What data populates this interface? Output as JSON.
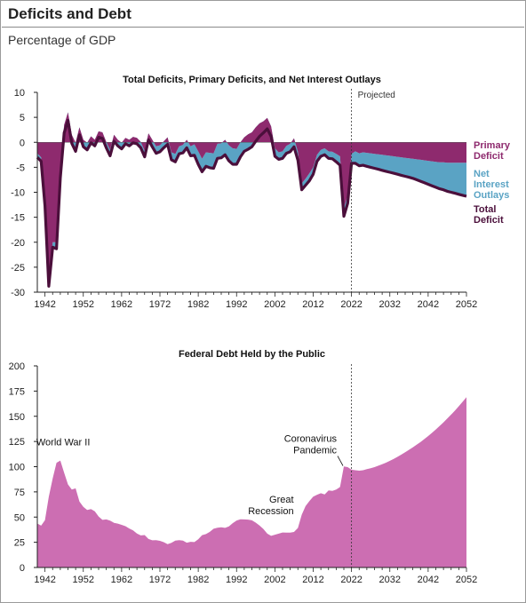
{
  "header": {
    "title": "Deficits and Debt",
    "subtitle": "Percentage of GDP"
  },
  "colors": {
    "primary_deficit": "#8e2a6e",
    "net_interest": "#5aa3c4",
    "total_deficit": "#4b0f3b",
    "debt_fill": "#cc6eb2",
    "axis": "#222222"
  },
  "chart_data": [
    {
      "type": "area",
      "title": "Total Deficits, Primary Deficits, and Net Interest Outlays",
      "annotation": "Projected",
      "projection_start": 2022,
      "xlim": [
        1940,
        2052
      ],
      "ylim": [
        -30,
        10
      ],
      "x_ticks": [
        1942,
        1952,
        1962,
        1972,
        1982,
        1992,
        2002,
        2012,
        2022,
        2032,
        2042,
        2052
      ],
      "y_ticks": [
        10,
        5,
        0,
        -5,
        -10,
        -15,
        -20,
        -25,
        -30
      ],
      "series": [
        {
          "name": "Primary Deficit",
          "x": [
            1940,
            1941,
            1942,
            1943,
            1944,
            1945,
            1946,
            1947,
            1948,
            1949,
            1950,
            1951,
            1952,
            1953,
            1954,
            1955,
            1956,
            1957,
            1958,
            1959,
            1960,
            1961,
            1962,
            1963,
            1964,
            1965,
            1966,
            1967,
            1968,
            1969,
            1970,
            1971,
            1972,
            1973,
            1974,
            1975,
            1976,
            1977,
            1978,
            1979,
            1980,
            1981,
            1982,
            1983,
            1984,
            1985,
            1986,
            1987,
            1988,
            1989,
            1990,
            1991,
            1992,
            1993,
            1994,
            1995,
            1996,
            1997,
            1998,
            1999,
            2000,
            2001,
            2002,
            2003,
            2004,
            2005,
            2006,
            2007,
            2008,
            2009,
            2010,
            2011,
            2012,
            2013,
            2014,
            2015,
            2016,
            2017,
            2018,
            2019,
            2020,
            2021,
            2022,
            2023,
            2024,
            2025,
            2026,
            2027,
            2028,
            2029,
            2030,
            2031,
            2032,
            2033,
            2034,
            2035,
            2036,
            2037,
            2038,
            2039,
            2040,
            2041,
            2042,
            2043,
            2044,
            2045,
            2046,
            2047,
            2048,
            2049,
            2050,
            2051,
            2052
          ],
          "values": [
            -2.2,
            -3.0,
            -12.0,
            -28.0,
            -20.0,
            -20.0,
            -5.5,
            3.5,
            6.0,
            1.5,
            -0.1,
            3.0,
            0.5,
            -0.1,
            1.2,
            0.5,
            2.2,
            2.0,
            0.1,
            -1.5,
            1.5,
            0.5,
            -0.1,
            0.9,
            0.5,
            1.1,
            0.9,
            0.1,
            -1.7,
            1.8,
            0.5,
            -0.8,
            -0.6,
            0.2,
            1.0,
            -2.0,
            -2.3,
            -0.8,
            -0.5,
            0.5,
            -0.8,
            -0.4,
            -1.8,
            -3.3,
            -2.0,
            -2.1,
            -2.2,
            -0.3,
            -0.2,
            0.5,
            -0.6,
            -1.2,
            -1.3,
            0.0,
            1.0,
            1.6,
            2.0,
            3.0,
            3.8,
            4.2,
            4.9,
            3.2,
            -1.2,
            -2.0,
            -1.8,
            -0.7,
            -0.3,
            0.8,
            -1.9,
            -8.2,
            -7.3,
            -6.2,
            -5.0,
            -2.5,
            -1.5,
            -1.2,
            -1.8,
            -1.9,
            -2.3,
            -2.8,
            -13.2,
            -10.6,
            -2.3,
            -1.8,
            -2.2,
            -2.0,
            -2.1,
            -2.2,
            -2.3,
            -2.4,
            -2.5,
            -2.6,
            -2.7,
            -2.8,
            -2.9,
            -3.0,
            -3.1,
            -3.2,
            -3.3,
            -3.4,
            -3.5,
            -3.6,
            -3.7,
            -3.8,
            -3.9,
            -4.0,
            -4.0,
            -4.1,
            -4.1,
            -4.1,
            -4.1,
            -4.1,
            -4.1
          ]
        },
        {
          "name": "Net Interest Outlays",
          "x": [
            1940,
            1941,
            1942,
            1943,
            1944,
            1945,
            1946,
            1947,
            1948,
            1949,
            1950,
            1951,
            1952,
            1953,
            1954,
            1955,
            1956,
            1957,
            1958,
            1959,
            1960,
            1961,
            1962,
            1963,
            1964,
            1965,
            1966,
            1967,
            1968,
            1969,
            1970,
            1971,
            1972,
            1973,
            1974,
            1975,
            1976,
            1977,
            1978,
            1979,
            1980,
            1981,
            1982,
            1983,
            1984,
            1985,
            1986,
            1987,
            1988,
            1989,
            1990,
            1991,
            1992,
            1993,
            1994,
            1995,
            1996,
            1997,
            1998,
            1999,
            2000,
            2001,
            2002,
            2003,
            2004,
            2005,
            2006,
            2007,
            2008,
            2009,
            2010,
            2011,
            2012,
            2013,
            2014,
            2015,
            2016,
            2017,
            2018,
            2019,
            2020,
            2021,
            2022,
            2023,
            2024,
            2025,
            2026,
            2027,
            2028,
            2029,
            2030,
            2031,
            2032,
            2033,
            2034,
            2035,
            2036,
            2037,
            2038,
            2039,
            2040,
            2041,
            2042,
            2043,
            2044,
            2045,
            2046,
            2047,
            2048,
            2049,
            2050,
            2051,
            2052
          ],
          "values": [
            0.8,
            0.8,
            0.7,
            0.8,
            1.0,
            1.3,
            1.6,
            1.6,
            1.6,
            1.7,
            1.7,
            1.5,
            1.4,
            1.4,
            1.3,
            1.2,
            1.2,
            1.2,
            1.2,
            1.2,
            1.3,
            1.2,
            1.2,
            1.2,
            1.2,
            1.2,
            1.2,
            1.2,
            1.2,
            1.3,
            1.4,
            1.4,
            1.3,
            1.3,
            1.4,
            1.5,
            1.6,
            1.5,
            1.6,
            1.6,
            1.9,
            2.2,
            2.6,
            2.6,
            2.8,
            3.0,
            3.0,
            2.9,
            2.9,
            3.0,
            3.1,
            3.2,
            3.1,
            2.9,
            2.8,
            3.0,
            2.9,
            2.8,
            2.6,
            2.3,
            2.2,
            2.0,
            1.6,
            1.4,
            1.4,
            1.5,
            1.6,
            1.7,
            1.7,
            1.3,
            1.3,
            1.5,
            1.4,
            1.3,
            1.3,
            1.3,
            1.4,
            1.4,
            1.6,
            1.8,
            1.6,
            1.6,
            1.9,
            2.4,
            2.5,
            2.6,
            2.7,
            2.8,
            2.9,
            3.0,
            3.1,
            3.2,
            3.3,
            3.4,
            3.5,
            3.6,
            3.7,
            3.8,
            3.9,
            4.1,
            4.3,
            4.5,
            4.7,
            4.9,
            5.1,
            5.3,
            5.5,
            5.7,
            5.9,
            6.1,
            6.3,
            6.5,
            6.7
          ]
        },
        {
          "name": "Total Deficit",
          "x": [
            1940,
            1941,
            1942,
            1943,
            1944,
            1945,
            1946,
            1947,
            1948,
            1949,
            1950,
            1951,
            1952,
            1953,
            1954,
            1955,
            1956,
            1957,
            1958,
            1959,
            1960,
            1961,
            1962,
            1963,
            1964,
            1965,
            1966,
            1967,
            1968,
            1969,
            1970,
            1971,
            1972,
            1973,
            1974,
            1975,
            1976,
            1977,
            1978,
            1979,
            1980,
            1981,
            1982,
            1983,
            1984,
            1985,
            1986,
            1987,
            1988,
            1989,
            1990,
            1991,
            1992,
            1993,
            1994,
            1995,
            1996,
            1997,
            1998,
            1999,
            2000,
            2001,
            2002,
            2003,
            2004,
            2005,
            2006,
            2007,
            2008,
            2009,
            2010,
            2011,
            2012,
            2013,
            2014,
            2015,
            2016,
            2017,
            2018,
            2019,
            2020,
            2021,
            2022,
            2023,
            2024,
            2025,
            2026,
            2027,
            2028,
            2029,
            2030,
            2031,
            2032,
            2033,
            2034,
            2035,
            2036,
            2037,
            2038,
            2039,
            2040,
            2041,
            2042,
            2043,
            2044,
            2045,
            2046,
            2047,
            2048,
            2049,
            2050,
            2051,
            2052
          ],
          "values": [
            -3.0,
            -3.8,
            -12.7,
            -28.8,
            -21.0,
            -21.3,
            -7.1,
            1.9,
            4.4,
            -0.2,
            -1.8,
            1.5,
            -0.9,
            -1.5,
            -0.1,
            -0.7,
            1.0,
            0.8,
            -1.1,
            -2.7,
            0.2,
            -0.7,
            -1.3,
            -0.3,
            -0.7,
            -0.1,
            -0.3,
            -1.1,
            -2.9,
            0.5,
            -0.9,
            -2.2,
            -1.9,
            -1.1,
            -0.4,
            -3.5,
            -3.9,
            -2.3,
            -2.1,
            -1.1,
            -2.7,
            -2.6,
            -4.4,
            -5.9,
            -4.8,
            -5.1,
            -5.2,
            -3.2,
            -3.1,
            -2.5,
            -3.7,
            -4.4,
            -4.4,
            -2.9,
            -1.8,
            -1.4,
            -0.9,
            0.2,
            1.2,
            1.9,
            2.7,
            1.2,
            -2.8,
            -3.4,
            -3.2,
            -2.2,
            -1.9,
            -0.9,
            -3.6,
            -9.5,
            -8.6,
            -7.7,
            -6.4,
            -3.8,
            -2.8,
            -2.5,
            -3.2,
            -3.3,
            -3.9,
            -4.6,
            -14.8,
            -12.2,
            -4.2,
            -4.2,
            -4.7,
            -4.6,
            -4.8,
            -5.0,
            -5.2,
            -5.4,
            -5.6,
            -5.8,
            -6.0,
            -6.2,
            -6.4,
            -6.6,
            -6.8,
            -7.0,
            -7.2,
            -7.5,
            -7.8,
            -8.1,
            -8.4,
            -8.7,
            -9.0,
            -9.3,
            -9.5,
            -9.8,
            -10.0,
            -10.2,
            -10.4,
            -10.6,
            -10.8
          ]
        }
      ]
    },
    {
      "type": "area",
      "title": "Federal Debt Held by the Public",
      "projection_start": 2022,
      "xlim": [
        1940,
        2052
      ],
      "ylim": [
        0,
        200
      ],
      "x_ticks": [
        1942,
        1952,
        1962,
        1972,
        1982,
        1992,
        2002,
        2012,
        2022,
        2032,
        2042,
        2052
      ],
      "y_ticks": [
        200,
        175,
        150,
        125,
        100,
        75,
        50,
        25,
        0
      ],
      "annotations": [
        {
          "text": "World War II",
          "x": 1946,
          "y": 106
        },
        {
          "text": "Great Recession",
          "x": 2009,
          "y": 52
        },
        {
          "text": "Coronavirus Pandemic",
          "x": 2020,
          "y": 100
        }
      ],
      "series": [
        {
          "name": "Federal Debt Held by the Public",
          "x": [
            1940,
            1941,
            1942,
            1943,
            1944,
            1945,
            1946,
            1947,
            1948,
            1949,
            1950,
            1951,
            1952,
            1953,
            1954,
            1955,
            1956,
            1957,
            1958,
            1959,
            1960,
            1961,
            1962,
            1963,
            1964,
            1965,
            1966,
            1967,
            1968,
            1969,
            1970,
            1971,
            1972,
            1973,
            1974,
            1975,
            1976,
            1977,
            1978,
            1979,
            1980,
            1981,
            1982,
            1983,
            1984,
            1985,
            1986,
            1987,
            1988,
            1989,
            1990,
            1991,
            1992,
            1993,
            1994,
            1995,
            1996,
            1997,
            1998,
            1999,
            2000,
            2001,
            2002,
            2003,
            2004,
            2005,
            2006,
            2007,
            2008,
            2009,
            2010,
            2011,
            2012,
            2013,
            2014,
            2015,
            2016,
            2017,
            2018,
            2019,
            2020,
            2021,
            2022,
            2023,
            2024,
            2025,
            2026,
            2027,
            2028,
            2029,
            2030,
            2031,
            2032,
            2033,
            2034,
            2035,
            2036,
            2037,
            2038,
            2039,
            2040,
            2041,
            2042,
            2043,
            2044,
            2045,
            2046,
            2047,
            2048,
            2049,
            2050,
            2051,
            2052
          ],
          "values": [
            43.6,
            41.5,
            47.0,
            70.0,
            88.3,
            103.9,
            106.1,
            93.9,
            82.4,
            77.4,
            78.5,
            65.4,
            60.1,
            57.1,
            57.9,
            55.7,
            50.6,
            47.2,
            47.7,
            46.4,
            44.3,
            43.5,
            42.3,
            41.0,
            38.7,
            36.7,
            33.7,
            31.8,
            32.2,
            28.3,
            27.0,
            27.1,
            26.4,
            25.1,
            23.1,
            24.5,
            26.7,
            27.1,
            26.6,
            24.6,
            25.5,
            25.2,
            27.9,
            32.1,
            33.1,
            35.3,
            38.4,
            39.5,
            39.8,
            39.3,
            40.8,
            44.0,
            46.6,
            47.8,
            47.7,
            47.5,
            46.8,
            44.5,
            41.6,
            38.2,
            33.6,
            31.4,
            32.5,
            33.6,
            34.7,
            34.6,
            34.5,
            35.2,
            39.2,
            52.3,
            60.9,
            65.9,
            70.3,
            72.2,
            73.7,
            72.5,
            76.4,
            76.0,
            77.4,
            79.8,
            100.3,
            99.6,
            97.0,
            96.5,
            96.0,
            96.5,
            97.5,
            98.5,
            99.6,
            101.0,
            102.5,
            104.0,
            105.8,
            107.7,
            109.8,
            112.0,
            114.3,
            116.7,
            119.2,
            121.8,
            124.5,
            127.4,
            130.4,
            133.6,
            136.9,
            140.4,
            144.0,
            147.8,
            151.7,
            155.8,
            160.0,
            164.4,
            168.9
          ]
        }
      ]
    }
  ]
}
